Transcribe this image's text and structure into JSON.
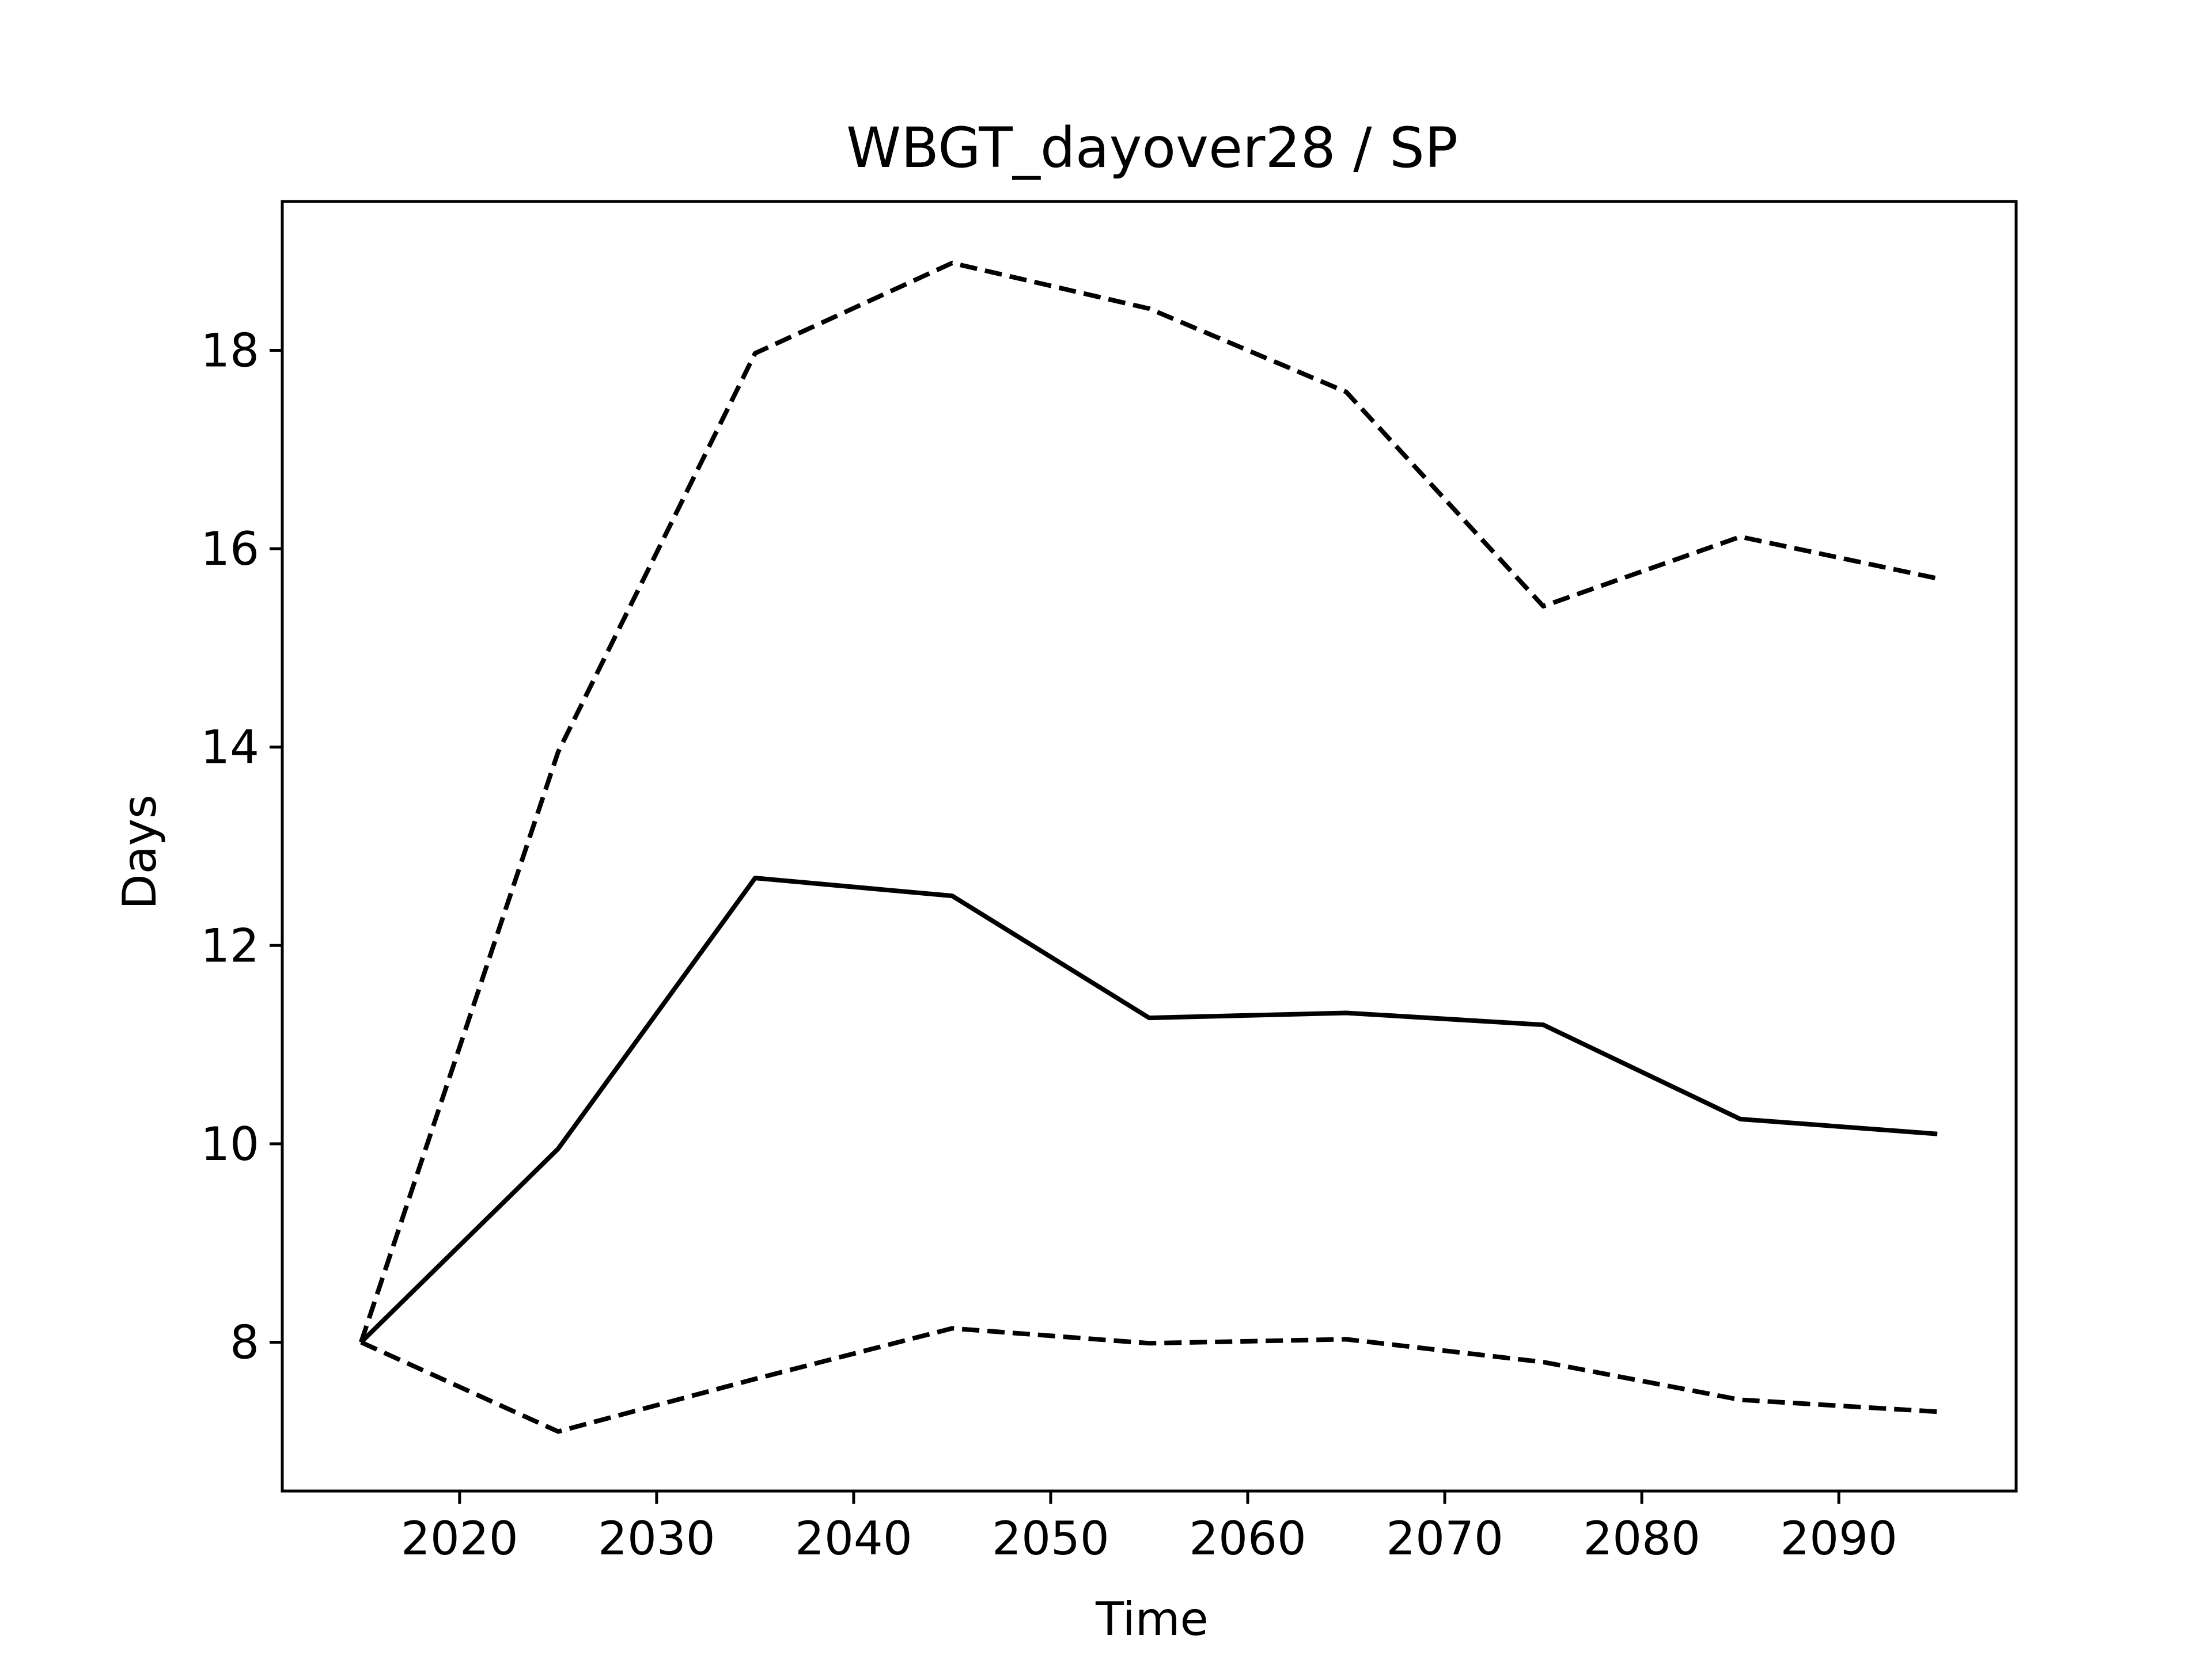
{
  "chart_data": {
    "type": "line",
    "title": "WBGT_dayover28 / SP",
    "xlabel": "Time",
    "ylabel": "Days",
    "xlim": [
      2011,
      2099
    ],
    "ylim": [
      6.5,
      19.5
    ],
    "xticks": [
      2020,
      2030,
      2040,
      2050,
      2060,
      2070,
      2080,
      2090
    ],
    "yticks": [
      8,
      10,
      12,
      14,
      16,
      18
    ],
    "grid": false,
    "x": [
      2015,
      2025,
      2035,
      2045,
      2055,
      2065,
      2075,
      2085,
      2095
    ],
    "series": [
      {
        "style": "dashed",
        "color": "#000000",
        "values": [
          8.0,
          13.95,
          17.97,
          18.88,
          18.42,
          17.58,
          15.42,
          16.12,
          15.7
        ]
      },
      {
        "style": "solid",
        "color": "#000000",
        "values": [
          8.0,
          9.95,
          12.68,
          12.5,
          11.27,
          11.32,
          11.2,
          10.25,
          10.1
        ]
      },
      {
        "style": "dashed",
        "color": "#000000",
        "values": [
          8.0,
          7.1,
          7.63,
          8.14,
          7.99,
          8.03,
          7.8,
          7.42,
          7.3
        ]
      }
    ]
  }
}
